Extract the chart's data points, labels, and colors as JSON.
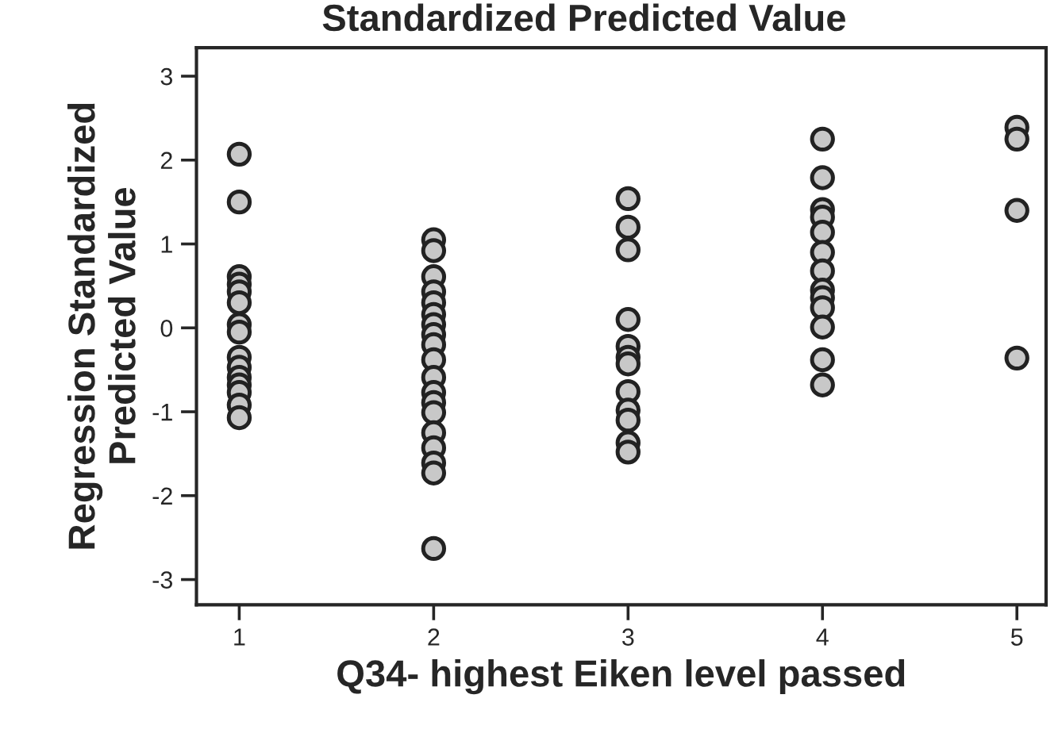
{
  "chart_data": {
    "type": "scatter",
    "title": "Standardized Predicted Value",
    "xlabel": "Q34- highest Eiken level passed",
    "ylabel": "Regression Standardized\nPredicted Value",
    "series": [
      {
        "color": "#c8c8c8",
        "x": [
          1,
          1,
          1,
          1,
          1,
          1,
          1,
          1,
          1,
          1,
          1,
          1,
          1,
          1,
          1,
          2,
          2,
          2,
          2,
          2,
          2,
          2,
          2,
          2,
          2,
          2,
          2,
          2,
          2,
          2,
          2,
          2,
          2,
          2,
          3,
          3,
          3,
          3,
          3,
          3,
          3,
          3,
          3,
          3,
          3,
          3,
          4,
          4,
          4,
          4,
          4,
          4,
          4,
          4,
          4,
          4,
          4,
          4,
          4,
          5,
          5,
          5,
          5
        ],
        "values": [
          2.07,
          1.5,
          0.61,
          0.52,
          0.43,
          0.3,
          0.04,
          -0.05,
          -0.35,
          -0.47,
          -0.59,
          -0.68,
          -0.77,
          -0.92,
          -1.07,
          1.05,
          0.92,
          0.61,
          0.43,
          0.3,
          0.16,
          0.04,
          -0.08,
          -0.2,
          -0.38,
          -0.59,
          -0.77,
          -0.89,
          -1.01,
          -1.25,
          -1.43,
          -1.61,
          -1.73,
          -2.63,
          1.54,
          1.2,
          0.93,
          0.1,
          -0.22,
          -0.35,
          -0.43,
          -0.76,
          -0.98,
          -1.1,
          -1.37,
          -1.48,
          2.25,
          1.79,
          1.41,
          1.32,
          1.14,
          0.9,
          0.68,
          0.45,
          0.36,
          0.24,
          0.01,
          -0.38,
          -0.68,
          2.39,
          2.25,
          1.4,
          -0.36
        ]
      }
    ],
    "xlim": [
      0.78,
      5.15
    ],
    "xticks": [
      1,
      2,
      3,
      4,
      5
    ],
    "ylim": [
      -3.3,
      3.34
    ],
    "yticks": [
      -3,
      -2,
      -1,
      0,
      1,
      2,
      3
    ],
    "marker": "circle",
    "grid": false
  }
}
